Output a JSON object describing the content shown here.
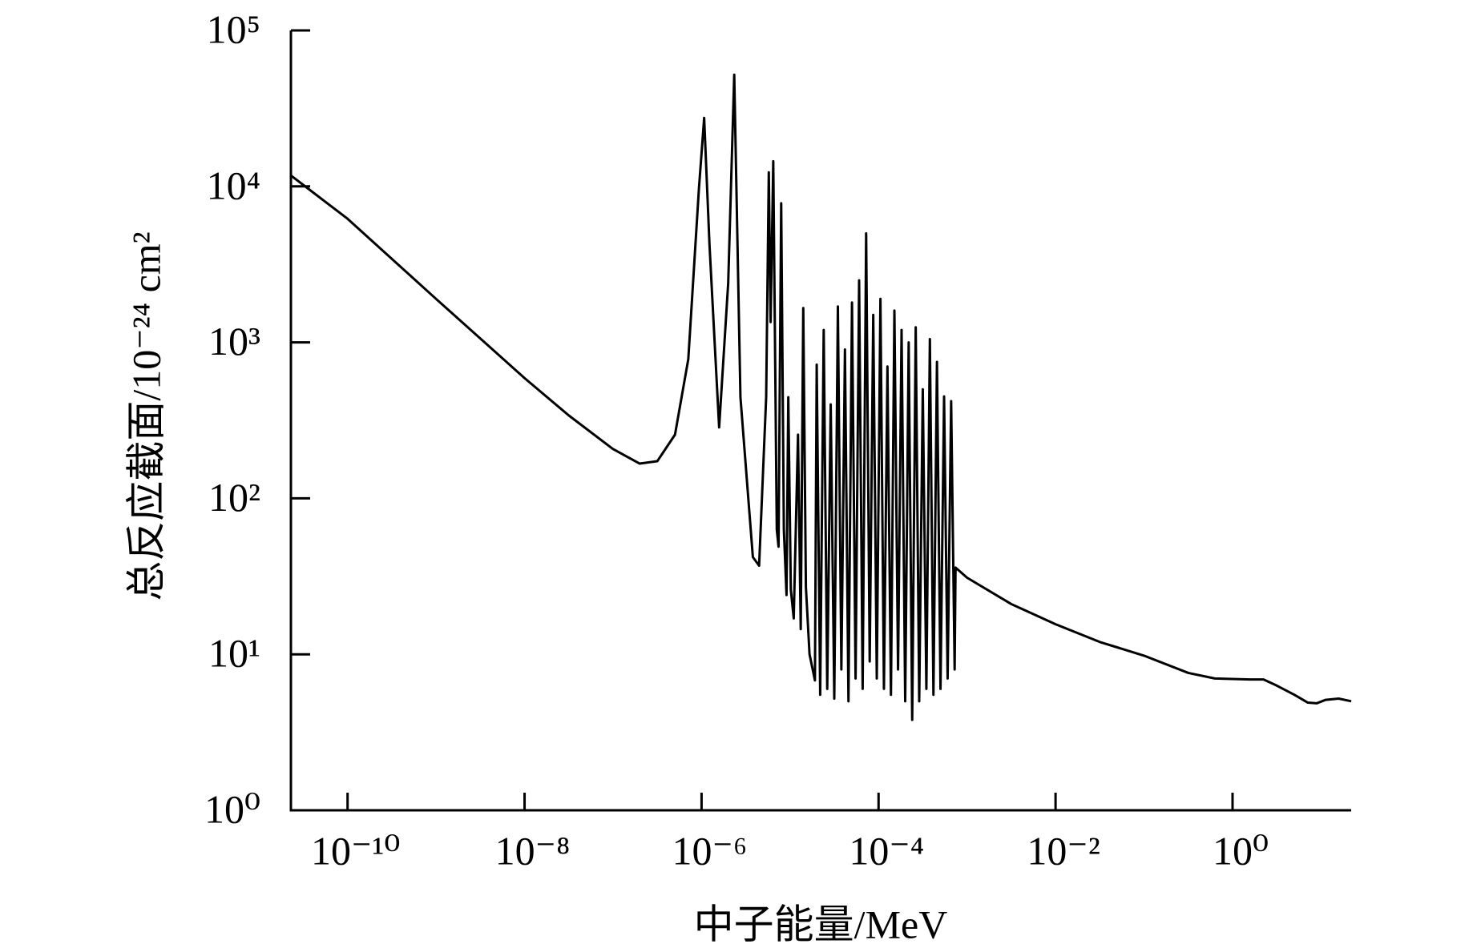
{
  "chart_data": {
    "type": "line",
    "xlabel": "中子能量/MeV",
    "ylabel": "总反应截面/10⁻²⁴ cm²",
    "xscale": "log",
    "yscale": "log",
    "color": "#000000",
    "grid": false,
    "xlim": [
      2.29e-11,
      21.9
    ],
    "ylim": [
      1,
      100000
    ],
    "xticks": [
      {
        "value": 1e-10,
        "label": "10⁻¹⁰"
      },
      {
        "value": 1e-08,
        "label": "10⁻⁸"
      },
      {
        "value": 1e-06,
        "label": "10⁻⁶"
      },
      {
        "value": 0.0001,
        "label": "10⁻⁴"
      },
      {
        "value": 0.01,
        "label": "10⁻²"
      },
      {
        "value": 1,
        "label": "10⁰"
      }
    ],
    "yticks": [
      {
        "value": 1,
        "label": "10⁰"
      },
      {
        "value": 10,
        "label": "10¹"
      },
      {
        "value": 100,
        "label": "10²"
      },
      {
        "value": 1000,
        "label": "10³"
      },
      {
        "value": 10000,
        "label": "10⁴"
      },
      {
        "value": 100000,
        "label": "10⁵"
      }
    ],
    "x": [
      2.29e-11,
      1e-10,
      1e-09,
      1e-08,
      3.16e-08,
      1e-07,
      2e-07,
      3.16e-07,
      5.01e-07,
      7.08e-07,
      9.33e-07,
      1.07e-06,
      1.23e-06,
      1.58e-06,
      2e-06,
      2.34e-06,
      2.75e-06,
      3.8e-06,
      4.47e-06,
      5.37e-06,
      5.75e-06,
      6.03e-06,
      6.46e-06,
      7.08e-06,
      7.41e-06,
      7.94e-06,
      8.51e-06,
      9.12e-06,
      9.55e-06,
      1.02e-05,
      1.1e-05,
      1.23e-05,
      1.32e-05,
      1.41e-05,
      1.51e-05,
      1.66e-05,
      1.91e-05,
      2e-05,
      2.19e-05,
      2.4e-05,
      2.63e-05,
      2.88e-05,
      3.16e-05,
      3.47e-05,
      3.8e-05,
      4.17e-05,
      4.57e-05,
      5.01e-05,
      5.5e-05,
      6.03e-05,
      6.61e-05,
      7.24e-05,
      7.94e-05,
      8.71e-05,
      9.55e-05,
      0.000105,
      0.000115,
      0.000126,
      0.000138,
      0.000151,
      0.000166,
      0.000182,
      0.0002,
      0.000219,
      0.00024,
      0.000263,
      0.000288,
      0.000316,
      0.000347,
      0.00038,
      0.000417,
      0.000457,
      0.000501,
      0.00055,
      0.000603,
      0.000661,
      0.000724,
      0.000741,
      0.001,
      0.00316,
      0.01,
      0.0316,
      0.1,
      0.316,
      0.631,
      1.58,
      2.24,
      3.16,
      5.01,
      7.08,
      8.91,
      11.2,
      15.8,
      21.9
    ],
    "values": [
      11750,
      6200,
      1900,
      590,
      340,
      207,
      167,
      173,
      256,
      780,
      9600,
      27500,
      4200,
      285,
      2400,
      52000,
      445,
      42,
      37,
      445,
      12300,
      1350,
      14500,
      63,
      49,
      7800,
      63,
      24,
      445,
      26,
      17,
      256,
      14.5,
      1660,
      27,
      10,
      6.8,
      720,
      5.5,
      1200,
      6,
      400,
      5.2,
      1700,
      8,
      900,
      5,
      1800,
      7,
      2500,
      6,
      5000,
      9,
      1500,
      7,
      1900,
      6,
      700,
      5.5,
      1600,
      8,
      1200,
      5,
      1000,
      3.8,
      1250,
      5,
      500,
      6,
      1050,
      5.5,
      750,
      6,
      450,
      7,
      420,
      8,
      36,
      31,
      21,
      15.6,
      12,
      9.8,
      7.6,
      7.0,
      6.9,
      6.9,
      6.3,
      5.5,
      4.9,
      4.85,
      5.1,
      5.2,
      5.0
    ]
  }
}
